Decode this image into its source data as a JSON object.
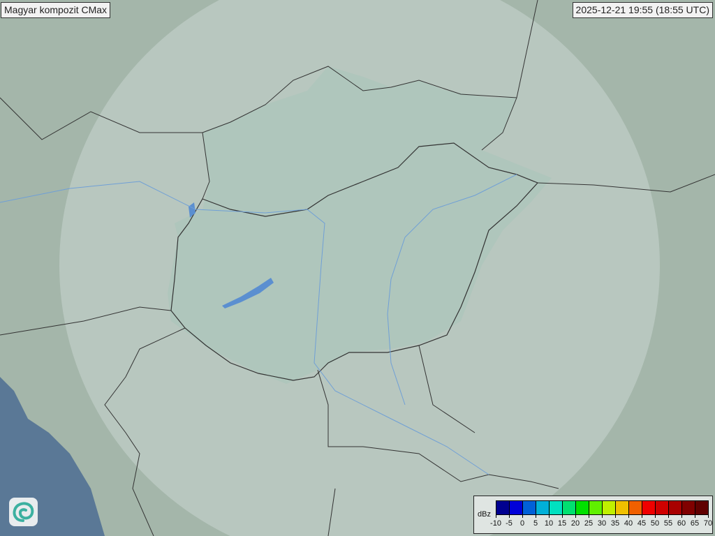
{
  "title": "Magyar kompozit  CMax",
  "timestamp": "2025-12-21 19:55 (18:55 UTC)",
  "legend": {
    "unit": "dBz",
    "ticks": [
      "-10",
      "-5",
      "0",
      "5",
      "10",
      "15",
      "20",
      "25",
      "30",
      "35",
      "40",
      "45",
      "50",
      "55",
      "60",
      "65",
      "70"
    ],
    "colors": [
      "#000090",
      "#0000d8",
      "#0060d8",
      "#00b0d8",
      "#00e0c0",
      "#00e070",
      "#00e000",
      "#60f000",
      "#c0f000",
      "#f0c000",
      "#f06000",
      "#f00000",
      "#d00000",
      "#a80000",
      "#800000",
      "#600000"
    ]
  },
  "colors": {
    "terrain": "#9fb2a6",
    "coverage": "#b9cbc4",
    "hungary": "#9db8ae",
    "sea": "#5a7896",
    "border": "#333333",
    "water": "#5b8fd0"
  },
  "logo_icon": "swirl-logo-icon"
}
